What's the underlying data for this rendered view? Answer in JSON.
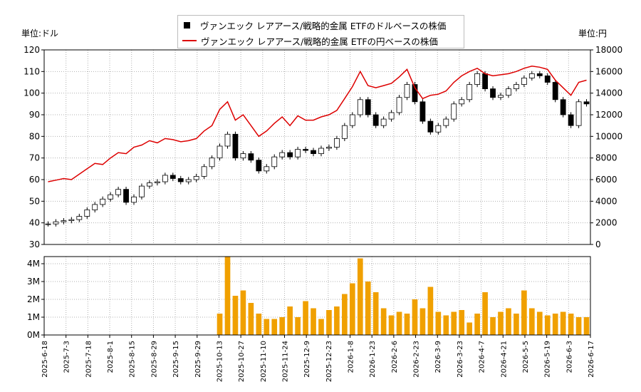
{
  "units": {
    "left": "単位:ドル",
    "right": "単位:円"
  },
  "legend": {
    "usd": "ヴァンエック レアアース/戦略的金属 ETFのドルベースの株価",
    "jpy": "ヴァンエック レアアース/戦略的金属 ETFの円ベースの株価"
  },
  "colors": {
    "candle_up": "#ffffff",
    "candle_down": "#000000",
    "jpy_line": "#dd0000",
    "volume": "#f0a000",
    "grid": "#b0b0b0"
  },
  "chart_data": {
    "type": "line",
    "x_ticks": [
      "2025-6-18",
      "2025-7-3",
      "2025-7-18",
      "2025-8-1",
      "2025-8-15",
      "2025-8-29",
      "2025-9-15",
      "2025-9-29",
      "2025-10-13",
      "2025-10-27",
      "2025-11-10",
      "2025-11-24",
      "2025-12-9",
      "2025-12-23",
      "2026-1-8",
      "2026-1-23",
      "2026-2-6",
      "2026-2-23",
      "2026-3-9",
      "2026-3-23",
      "2026-4-7",
      "2026-4-21",
      "2026-5-5",
      "2026-5-19",
      "2026-6-3",
      "2026-6-17"
    ],
    "price_axis": {
      "ticks": [
        30,
        40,
        50,
        60,
        70,
        80,
        90,
        100,
        110,
        120
      ],
      "ylim": [
        30,
        120
      ]
    },
    "yen_axis": {
      "ticks": [
        0,
        2000,
        4000,
        6000,
        8000,
        10000,
        12000,
        14000,
        16000,
        18000
      ],
      "ylim": [
        0,
        18000
      ]
    },
    "volume_axis": {
      "ticks": [
        "0M",
        "1M",
        "2M",
        "3M",
        "4M"
      ],
      "ylim": [
        0,
        4.4
      ]
    },
    "usd_close": [
      39.5,
      40.5,
      41.0,
      41.5,
      43.0,
      46.0,
      48.5,
      51.0,
      53.0,
      55.5,
      49.5,
      52.0,
      57.0,
      58.5,
      59.0,
      62.0,
      60.5,
      59.0,
      60.0,
      61.5,
      66.0,
      70.0,
      75.5,
      81.0,
      70.0,
      72.0,
      69.0,
      64.0,
      66.0,
      70.5,
      72.5,
      70.5,
      74.0,
      73.5,
      72.0,
      74.5,
      75.0,
      79.0,
      85.0,
      90.0,
      97.0,
      90.0,
      85.0,
      88.0,
      91.0,
      98.0,
      104.0,
      96.0,
      87.0,
      82.0,
      85.0,
      88.0,
      95.0,
      97.0,
      104.0,
      109.0,
      102.0,
      98.0,
      99.0,
      102.0,
      104.0,
      107.0,
      109.0,
      108.0,
      105.0,
      97.0,
      90.0,
      85.0,
      96.0,
      95.0
    ],
    "jpy_close": [
      5800,
      5950,
      6100,
      6000,
      6500,
      7000,
      7500,
      7400,
      8000,
      8500,
      8400,
      9000,
      9200,
      9600,
      9400,
      9800,
      9700,
      9500,
      9600,
      9800,
      10500,
      11000,
      12500,
      13200,
      11500,
      12000,
      11000,
      10000,
      10500,
      11200,
      11800,
      11000,
      11900,
      11500,
      11500,
      11800,
      12000,
      12400,
      13500,
      14600,
      16000,
      14700,
      14500,
      14700,
      14900,
      15500,
      16200,
      14500,
      13500,
      13800,
      13900,
      14200,
      15000,
      15600,
      16000,
      16300,
      15800,
      15600,
      15700,
      15800,
      16000,
      16300,
      16500,
      16400,
      16200,
      15200,
      14500,
      13800,
      15000,
      15200
    ],
    "volume_m": [
      0,
      0,
      0,
      0,
      0,
      0,
      0,
      0,
      0,
      0,
      0,
      0,
      0,
      0,
      0,
      0,
      0,
      0,
      0,
      0,
      0,
      0,
      1.2,
      4.4,
      2.2,
      2.5,
      1.8,
      1.2,
      0.9,
      0.9,
      1.0,
      1.6,
      1.0,
      1.9,
      1.5,
      0.9,
      1.4,
      1.6,
      2.3,
      2.9,
      4.3,
      3.0,
      2.4,
      1.5,
      1.1,
      1.3,
      1.2,
      2.0,
      1.5,
      2.7,
      1.3,
      1.1,
      1.3,
      1.4,
      0.7,
      1.2,
      2.4,
      1.0,
      1.3,
      1.5,
      1.2,
      2.5,
      1.5,
      1.3,
      1.1,
      1.2,
      1.3,
      1.2,
      1.0,
      1.0
    ]
  }
}
